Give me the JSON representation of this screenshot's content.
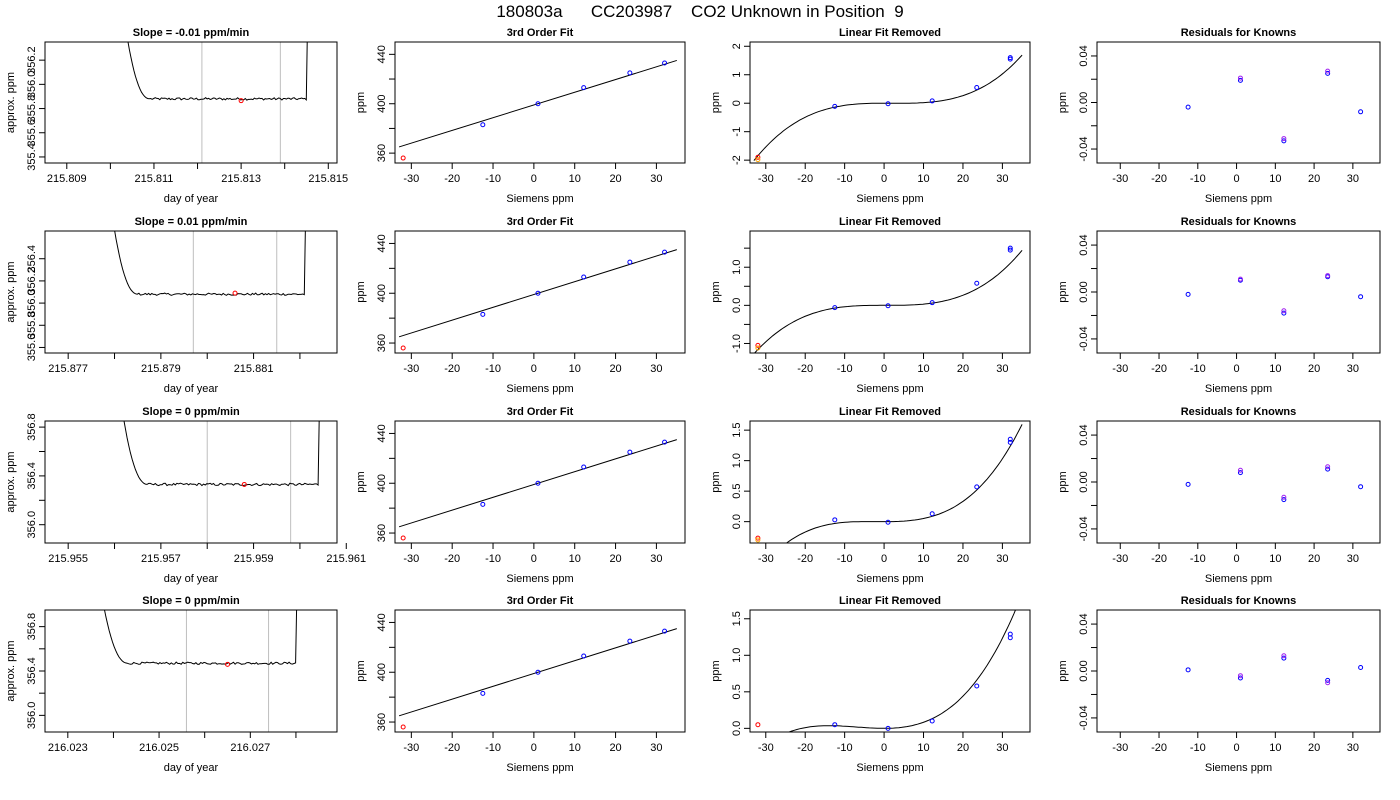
{
  "title": "180803a      CC203987    CO2 Unknown in Position  9",
  "colors": {
    "trace": "#000000",
    "window": "#bebebe",
    "known": "#0000ff",
    "unknown": "#ff0000",
    "extra": "#ffa500",
    "residual_a": "#0000ff",
    "residual_b": "#a020f0"
  },
  "chart_data": [
    {
      "type": "line",
      "row": 0,
      "col": 0,
      "title": "Slope =  -0.01  ppm/min",
      "xlabel": "day of year",
      "ylabel": "approx. ppm",
      "xlim": [
        215.8085,
        215.8152
      ],
      "ylim": [
        355.35,
        356.35
      ],
      "xticks": [
        215.809,
        215.81,
        215.811,
        215.812,
        215.813,
        215.814,
        215.815
      ],
      "xtick_labels": [
        "215.809",
        "",
        "215.811",
        "",
        "215.813",
        "",
        "215.815"
      ],
      "yticks": [
        355.4,
        355.6,
        355.8,
        356.0,
        356.2
      ],
      "ytick_labels": [
        "355.4",
        "355.6",
        "355.8",
        "356.0",
        "356.2"
      ],
      "window": [
        215.8121,
        215.8139
      ],
      "trace": {
        "start": 215.8104,
        "rise_end": 215.8145,
        "end": 215.8146,
        "plateau": 355.88,
        "peak": 356.36,
        "noise": 0.02
      },
      "marker": {
        "x": 215.813,
        "y": 355.865
      }
    },
    {
      "type": "scatter",
      "row": 0,
      "col": 1,
      "title": "3rd Order Fit",
      "xlabel": "Siemens ppm",
      "ylabel": "ppm",
      "xlim": [
        -34,
        37
      ],
      "ylim": [
        352,
        450
      ],
      "xticks": [
        -30,
        -20,
        -10,
        0,
        10,
        20,
        30
      ],
      "xtick_labels": [
        "-30",
        "-20",
        "-10",
        "0",
        "10",
        "20",
        "30"
      ],
      "yticks": [
        360,
        380,
        400,
        420,
        440
      ],
      "ytick_labels": [
        "360",
        "",
        "400",
        "",
        "440"
      ],
      "fit": {
        "x0": -33,
        "x1": 35,
        "slope": 1.03,
        "intercept": 399
      },
      "knowns": [
        [
          -12.5,
          383
        ],
        [
          1,
          400
        ],
        [
          12.2,
          413
        ],
        [
          23.5,
          425
        ],
        [
          32,
          433
        ]
      ],
      "unknowns": [
        [
          -32,
          356
        ]
      ]
    },
    {
      "type": "scatter",
      "row": 0,
      "col": 2,
      "title": "Linear Fit Removed",
      "xlabel": "Siemens ppm",
      "ylabel": "ppm",
      "xlim": [
        -34,
        37
      ],
      "ylim": [
        -2.1,
        2.15
      ],
      "xticks": [
        -30,
        -20,
        -10,
        0,
        10,
        20,
        30
      ],
      "xtick_labels": [
        "-30",
        "-20",
        "-10",
        "0",
        "10",
        "20",
        "30"
      ],
      "yticks": [
        -2,
        -1,
        0,
        1,
        2
      ],
      "ytick_labels": [
        "-2",
        "-1",
        "0",
        "1",
        "2"
      ],
      "curve": {
        "x0": -33,
        "x1": 35,
        "coeffs": [
          0.0,
          -0.000283,
          0.0,
          4.75e-05
        ]
      },
      "knowns": [
        [
          -12.5,
          -0.11
        ],
        [
          1,
          -0.02
        ],
        [
          12.2,
          0.08
        ],
        [
          23.5,
          0.55
        ],
        [
          32,
          1.55
        ],
        [
          32,
          1.6
        ]
      ],
      "unknowns": [
        [
          -32,
          -1.9
        ]
      ],
      "extras": [
        [
          -32,
          -1.98
        ]
      ]
    },
    {
      "type": "scatter",
      "row": 0,
      "col": 3,
      "title": "Residuals for Knowns",
      "xlabel": "Siemens ppm",
      "ylabel": "ppm",
      "xlim": [
        -36,
        37
      ],
      "ylim": [
        -0.052,
        0.052
      ],
      "xticks": [
        -30,
        -20,
        -10,
        0,
        10,
        20,
        30
      ],
      "xtick_labels": [
        "-30",
        "-20",
        "-10",
        "0",
        "10",
        "20",
        "30"
      ],
      "yticks": [
        -0.04,
        -0.02,
        0,
        0.02,
        0.04
      ],
      "ytick_labels": [
        "-0.04",
        "",
        "0.00",
        "",
        "0.04"
      ],
      "residuals_a": [
        [
          -12.5,
          -0.004
        ],
        [
          1,
          0.019
        ],
        [
          12.2,
          -0.033
        ],
        [
          23.5,
          0.025
        ],
        [
          32,
          -0.008
        ]
      ],
      "residuals_b": [
        [
          1,
          0.021
        ],
        [
          12.2,
          -0.031
        ],
        [
          23.5,
          0.027
        ]
      ]
    },
    {
      "type": "line",
      "row": 1,
      "col": 0,
      "title": "Slope =  0.01  ppm/min",
      "xlabel": "day of year",
      "ylabel": "approx. ppm",
      "xlim": [
        215.8765,
        215.8828
      ],
      "ylim": [
        355.55,
        356.65
      ],
      "xticks": [
        215.877,
        215.878,
        215.879,
        215.88,
        215.881,
        215.882
      ],
      "xtick_labels": [
        "215.877",
        "",
        "215.879",
        "",
        "215.881",
        ""
      ],
      "yticks": [
        355.6,
        355.8,
        356.0,
        356.2,
        356.4
      ],
      "ytick_labels": [
        "355.6",
        "355.8",
        "356.0",
        "356.2",
        "356.4"
      ],
      "window": [
        215.8797,
        215.8815
      ],
      "trace": {
        "start": 215.878,
        "rise_end": 215.8821,
        "end": 215.8822,
        "plateau": 356.08,
        "peak": 356.66,
        "noise": 0.02
      },
      "marker": {
        "x": 215.8806,
        "y": 356.09
      }
    },
    {
      "type": "scatter",
      "row": 1,
      "col": 1,
      "title": "3rd Order Fit",
      "xlabel": "Siemens ppm",
      "ylabel": "ppm",
      "xlim": [
        -34,
        37
      ],
      "ylim": [
        352,
        450
      ],
      "xticks": [
        -30,
        -20,
        -10,
        0,
        10,
        20,
        30
      ],
      "xtick_labels": [
        "-30",
        "-20",
        "-10",
        "0",
        "10",
        "20",
        "30"
      ],
      "yticks": [
        360,
        380,
        400,
        420,
        440
      ],
      "ytick_labels": [
        "360",
        "",
        "400",
        "",
        "440"
      ],
      "fit": {
        "x0": -33,
        "x1": 35,
        "slope": 1.03,
        "intercept": 399
      },
      "knowns": [
        [
          -12.5,
          383
        ],
        [
          1,
          400
        ],
        [
          12.2,
          413
        ],
        [
          23.5,
          425
        ],
        [
          32,
          433
        ]
      ],
      "unknowns": [
        [
          -32,
          356
        ]
      ]
    },
    {
      "type": "scatter",
      "row": 1,
      "col": 2,
      "title": "Linear Fit Removed",
      "xlabel": "Siemens ppm",
      "ylabel": "ppm",
      "xlim": [
        -34,
        37
      ],
      "ylim": [
        -1.25,
        1.95
      ],
      "xticks": [
        -30,
        -20,
        -10,
        0,
        10,
        20,
        30
      ],
      "xtick_labels": [
        "-30",
        "-20",
        "-10",
        "0",
        "10",
        "20",
        "30"
      ],
      "yticks": [
        -1.0,
        -0.5,
        0.0,
        0.5,
        1.0,
        1.5
      ],
      "ytick_labels": [
        "-1.0",
        "",
        "0.0",
        "",
        "1.0",
        ""
      ],
      "curve": {
        "x0": -33,
        "x1": 35,
        "coeffs": [
          0.0,
          -2.85e-05,
          0.0,
          3.45e-05
        ]
      },
      "knowns": [
        [
          -12.5,
          -0.06
        ],
        [
          1,
          -0.01
        ],
        [
          12.2,
          0.07
        ],
        [
          23.5,
          0.58
        ],
        [
          32,
          1.45
        ],
        [
          32,
          1.5
        ]
      ],
      "unknowns": [
        [
          -32,
          -1.05
        ]
      ],
      "extras": [
        [
          -32,
          -1.12
        ]
      ]
    },
    {
      "type": "scatter",
      "row": 1,
      "col": 3,
      "title": "Residuals for Knowns",
      "xlabel": "Siemens ppm",
      "ylabel": "ppm",
      "xlim": [
        -36,
        37
      ],
      "ylim": [
        -0.052,
        0.052
      ],
      "xticks": [
        -30,
        -20,
        -10,
        0,
        10,
        20,
        30
      ],
      "xtick_labels": [
        "-30",
        "-20",
        "-10",
        "0",
        "10",
        "20",
        "30"
      ],
      "yticks": [
        -0.04,
        -0.02,
        0,
        0.02,
        0.04
      ],
      "ytick_labels": [
        "-0.04",
        "",
        "0.00",
        "",
        "0.04"
      ],
      "residuals_a": [
        [
          -12.5,
          -0.002
        ],
        [
          1,
          0.01
        ],
        [
          12.2,
          -0.018
        ],
        [
          23.5,
          0.013
        ],
        [
          32,
          -0.004
        ]
      ],
      "residuals_b": [
        [
          1,
          0.011
        ],
        [
          12.2,
          -0.016
        ],
        [
          23.5,
          0.014
        ]
      ]
    },
    {
      "type": "line",
      "row": 2,
      "col": 0,
      "title": "Slope =  0  ppm/min",
      "xlabel": "day of year",
      "ylabel": "approx. ppm",
      "xlim": [
        215.9545,
        215.9608
      ],
      "ylim": [
        355.85,
        356.85
      ],
      "xticks": [
        215.955,
        215.956,
        215.957,
        215.958,
        215.959,
        215.96,
        215.961
      ],
      "xtick_labels": [
        "215.955",
        "",
        "215.957",
        "",
        "215.959",
        "",
        "215.961"
      ],
      "yticks": [
        356.0,
        356.2,
        356.4,
        356.6,
        356.8
      ],
      "ytick_labels": [
        "356.0",
        "",
        "356.4",
        "",
        "356.8"
      ],
      "window": [
        215.958,
        215.9598
      ],
      "trace": {
        "start": 215.9562,
        "rise_end": 215.9604,
        "end": 215.9605,
        "plateau": 356.33,
        "peak": 356.86,
        "noise": 0.02
      },
      "marker": {
        "x": 215.9588,
        "y": 356.33
      }
    },
    {
      "type": "scatter",
      "row": 2,
      "col": 1,
      "title": "3rd Order Fit",
      "xlabel": "Siemens ppm",
      "ylabel": "ppm",
      "xlim": [
        -34,
        37
      ],
      "ylim": [
        352,
        450
      ],
      "xticks": [
        -30,
        -20,
        -10,
        0,
        10,
        20,
        30
      ],
      "xtick_labels": [
        "-30",
        "-20",
        "-10",
        "0",
        "10",
        "20",
        "30"
      ],
      "yticks": [
        360,
        380,
        400,
        420,
        440
      ],
      "ytick_labels": [
        "360",
        "",
        "400",
        "",
        "440"
      ],
      "fit": {
        "x0": -33,
        "x1": 35,
        "slope": 1.03,
        "intercept": 399
      },
      "knowns": [
        [
          -12.5,
          383
        ],
        [
          1,
          400
        ],
        [
          12.2,
          413
        ],
        [
          23.5,
          425
        ],
        [
          32,
          433
        ]
      ],
      "unknowns": [
        [
          -32,
          356
        ]
      ]
    },
    {
      "type": "scatter",
      "row": 2,
      "col": 2,
      "title": "Linear Fit Removed",
      "xlabel": "Siemens ppm",
      "ylabel": "ppm",
      "xlim": [
        -34,
        37
      ],
      "ylim": [
        -0.35,
        1.65
      ],
      "xticks": [
        -30,
        -20,
        -10,
        0,
        10,
        20,
        30
      ],
      "xtick_labels": [
        "-30",
        "-20",
        "-10",
        "0",
        "10",
        "20",
        "30"
      ],
      "yticks": [
        0.0,
        0.5,
        1.0,
        1.5
      ],
      "ytick_labels": [
        "0.0",
        "0.5",
        "1.0",
        "1.5"
      ],
      "curve": {
        "x0": -33,
        "x1": 35,
        "coeffs": [
          0.0,
          0.000203,
          0.0,
          3.14e-05
        ]
      },
      "knowns": [
        [
          -12.5,
          0.03
        ],
        [
          1,
          -0.01
        ],
        [
          12.2,
          0.13
        ],
        [
          23.5,
          0.57
        ],
        [
          32,
          1.3
        ],
        [
          32,
          1.35
        ]
      ],
      "unknowns": [
        [
          -32,
          -0.27
        ]
      ],
      "extras": [
        [
          -32,
          -0.3
        ]
      ]
    },
    {
      "type": "scatter",
      "row": 2,
      "col": 3,
      "title": "Residuals for Knowns",
      "xlabel": "Siemens ppm",
      "ylabel": "ppm",
      "xlim": [
        -36,
        37
      ],
      "ylim": [
        -0.052,
        0.052
      ],
      "xticks": [
        -30,
        -20,
        -10,
        0,
        10,
        20,
        30
      ],
      "xtick_labels": [
        "-30",
        "-20",
        "-10",
        "0",
        "10",
        "20",
        "30"
      ],
      "yticks": [
        -0.04,
        -0.02,
        0,
        0.02,
        0.04
      ],
      "ytick_labels": [
        "-0.04",
        "",
        "0.00",
        "",
        "0.04"
      ],
      "residuals_a": [
        [
          -12.5,
          -0.002
        ],
        [
          1,
          0.008
        ],
        [
          12.2,
          -0.015
        ],
        [
          23.5,
          0.011
        ],
        [
          32,
          -0.004
        ]
      ],
      "residuals_b": [
        [
          1,
          0.01
        ],
        [
          12.2,
          -0.013
        ],
        [
          23.5,
          0.013
        ]
      ]
    },
    {
      "type": "line",
      "row": 3,
      "col": 0,
      "title": "Slope =  0  ppm/min",
      "xlabel": "day of year",
      "ylabel": "approx. ppm",
      "xlim": [
        216.0225,
        216.0289
      ],
      "ylim": [
        355.85,
        356.95
      ],
      "xticks": [
        216.023,
        216.024,
        216.025,
        216.026,
        216.027,
        216.028
      ],
      "xtick_labels": [
        "216.023",
        "",
        "216.025",
        "",
        "216.027",
        ""
      ],
      "yticks": [
        356.0,
        356.2,
        356.4,
        356.6,
        356.8
      ],
      "ytick_labels": [
        "356.0",
        "",
        "356.4",
        "",
        "356.8"
      ],
      "window": [
        216.0256,
        216.0274
      ],
      "trace": {
        "start": 216.0238,
        "rise_end": 216.028,
        "end": 216.0281,
        "plateau": 356.47,
        "peak": 356.96,
        "noise": 0.02
      },
      "marker": {
        "x": 216.0265,
        "y": 356.46
      }
    },
    {
      "type": "scatter",
      "row": 3,
      "col": 1,
      "title": "3rd Order Fit",
      "xlabel": "Siemens ppm",
      "ylabel": "ppm",
      "xlim": [
        -34,
        37
      ],
      "ylim": [
        352,
        450
      ],
      "xticks": [
        -30,
        -20,
        -10,
        0,
        10,
        20,
        30
      ],
      "xtick_labels": [
        "-30",
        "-20",
        "-10",
        "0",
        "10",
        "20",
        "30"
      ],
      "yticks": [
        360,
        380,
        400,
        420,
        440
      ],
      "ytick_labels": [
        "360",
        "",
        "400",
        "",
        "440"
      ],
      "fit": {
        "x0": -33,
        "x1": 35,
        "slope": 1.03,
        "intercept": 399
      },
      "knowns": [
        [
          -12.5,
          383
        ],
        [
          1,
          400
        ],
        [
          12.2,
          413
        ],
        [
          23.5,
          425
        ],
        [
          32,
          433
        ]
      ],
      "unknowns": [
        [
          -32,
          356
        ]
      ]
    },
    {
      "type": "scatter",
      "row": 3,
      "col": 2,
      "title": "Linear Fit Removed",
      "xlabel": "Siemens ppm",
      "ylabel": "ppm",
      "xlim": [
        -34,
        37
      ],
      "ylim": [
        -0.05,
        1.62
      ],
      "xticks": [
        -30,
        -20,
        -10,
        0,
        10,
        20,
        30
      ],
      "xtick_labels": [
        "-30",
        "-20",
        "-10",
        "0",
        "10",
        "20",
        "30"
      ],
      "yticks": [
        0.0,
        0.5,
        1.0,
        1.5
      ],
      "ytick_labels": [
        "0.0",
        "0.5",
        "1.0",
        "1.5"
      ],
      "curve": {
        "x0": -33,
        "x1": 35,
        "coeffs": [
          0.0,
          0.000563,
          0.0,
          2.69e-05
        ]
      },
      "knowns": [
        [
          -12.5,
          0.05
        ],
        [
          1,
          0.0
        ],
        [
          12.2,
          0.1
        ],
        [
          23.5,
          0.58
        ],
        [
          32,
          1.24
        ],
        [
          32,
          1.29
        ]
      ],
      "unknowns": [
        [
          -32,
          0.05
        ]
      ],
      "extras": []
    },
    {
      "type": "scatter",
      "row": 3,
      "col": 3,
      "title": "Residuals for Knowns",
      "xlabel": "Siemens ppm",
      "ylabel": "ppm",
      "xlim": [
        -36,
        37
      ],
      "ylim": [
        -0.052,
        0.052
      ],
      "xticks": [
        -30,
        -20,
        -10,
        0,
        10,
        20,
        30
      ],
      "xtick_labels": [
        "-30",
        "-20",
        "-10",
        "0",
        "10",
        "20",
        "30"
      ],
      "yticks": [
        -0.04,
        -0.02,
        0,
        0.02,
        0.04
      ],
      "ytick_labels": [
        "-0.04",
        "",
        "0.00",
        "",
        "0.04"
      ],
      "residuals_a": [
        [
          -12.5,
          0.001
        ],
        [
          1,
          -0.006
        ],
        [
          12.2,
          0.011
        ],
        [
          23.5,
          -0.008
        ],
        [
          32,
          0.003
        ]
      ],
      "residuals_b": [
        [
          1,
          -0.004
        ],
        [
          12.2,
          0.013
        ],
        [
          23.5,
          -0.01
        ]
      ]
    }
  ]
}
